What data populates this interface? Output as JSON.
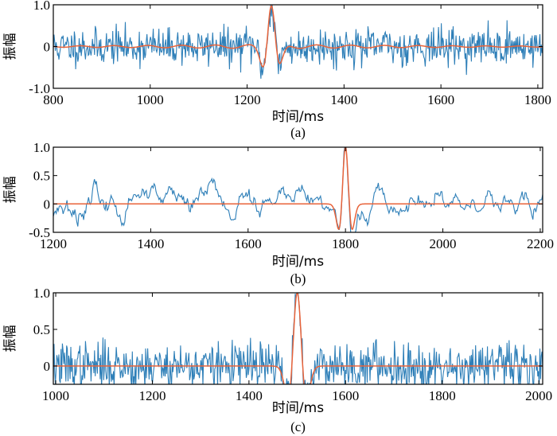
{
  "chart_data": [
    {
      "type": "line",
      "caption": "(a)",
      "xlabel": "时间/ms",
      "ylabel": "振幅",
      "xlim": [
        800,
        1810
      ],
      "ylim": [
        -1.0,
        1.0
      ],
      "xticks": [
        800,
        1000,
        1200,
        1400,
        1600,
        1800
      ],
      "yticks": [
        1.0,
        0,
        -1.0
      ],
      "xtick_labels": [
        "800",
        "1000",
        "1200",
        "1400",
        "1600",
        "1800"
      ],
      "ytick_labels": [
        "1.0",
        "0",
        "-1.0"
      ],
      "series": [
        {
          "name": "noisy",
          "color": "#2e7fb8",
          "noise_amp": 0.22,
          "seed": 11,
          "samples": 700,
          "smooth": 1
        },
        {
          "name": "wavelet",
          "color": "#e8633a",
          "center": 1250,
          "freq": 0.022,
          "sigma": 22,
          "amp": 1.0,
          "ripple": 0.05
        }
      ]
    },
    {
      "type": "line",
      "caption": "(b)",
      "xlabel": "时间/ms",
      "ylabel": "振幅",
      "xlim": [
        1200,
        2205
      ],
      "ylim": [
        -0.5,
        1.0
      ],
      "xticks": [
        1200,
        1400,
        1600,
        1800,
        2000,
        2200
      ],
      "yticks": [
        1.0,
        0.5,
        0,
        -0.5
      ],
      "xtick_labels": [
        "1200",
        "1400",
        "1600",
        "1800",
        "2000",
        "2200"
      ],
      "ytick_labels": [
        "1.0",
        "0.5",
        "0",
        "-0.5"
      ],
      "series": [
        {
          "name": "noisy",
          "color": "#2e7fb8",
          "noise_amp": 0.28,
          "seed": 23,
          "samples": 500,
          "smooth": 5
        },
        {
          "name": "wavelet",
          "color": "#e8633a",
          "center": 1800,
          "freq": 0.028,
          "sigma": 10,
          "amp": 1.0,
          "ripple": 0
        }
      ]
    },
    {
      "type": "line",
      "caption": "(c)",
      "xlabel": "时间/ms",
      "ylabel": "振幅",
      "xlim": [
        995,
        2008
      ],
      "ylim": [
        -0.25,
        1.0
      ],
      "xticks": [
        1000,
        1200,
        1400,
        1600,
        1800,
        2000
      ],
      "yticks": [
        1.0,
        0.5,
        0
      ],
      "xtick_labels": [
        "1000",
        "1200",
        "1400",
        "1600",
        "1800",
        "2000"
      ],
      "ytick_labels": [
        "1.0",
        "0.5",
        "0"
      ],
      "series": [
        {
          "name": "noisy",
          "color": "#2e7fb8",
          "noise_amp": 0.16,
          "seed": 37,
          "samples": 700,
          "smooth": 1
        },
        {
          "name": "wavelet",
          "color": "#e8633a",
          "center": 1500,
          "freq": 0.02,
          "sigma": 11,
          "amp": 1.0,
          "ripple": 0
        }
      ]
    }
  ]
}
